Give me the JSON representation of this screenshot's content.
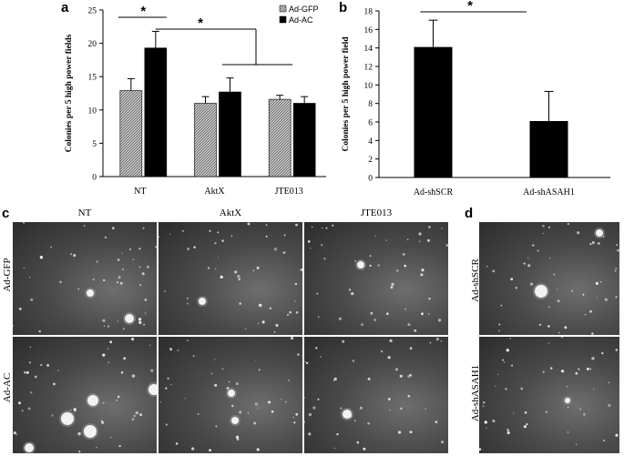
{
  "panels": {
    "a": "a",
    "b": "b",
    "c": "c",
    "d": "d"
  },
  "chart_data": [
    {
      "type": "bar",
      "panel": "a",
      "categories": [
        "NT",
        "AktX",
        "JTE013"
      ],
      "series": [
        {
          "name": "Ad-GFP",
          "values": [
            12.9,
            11.0,
            11.6
          ],
          "errors": [
            1.8,
            1.0,
            0.6
          ],
          "pattern": "hatched"
        },
        {
          "name": "Ad-AC",
          "values": [
            19.3,
            12.7,
            11.0
          ],
          "errors": [
            2.5,
            2.1,
            1.0
          ],
          "pattern": "solid"
        }
      ],
      "title": "",
      "xlabel": "",
      "ylabel": "Colonies per 5 high power fields",
      "ylim": [
        0,
        25
      ],
      "yticks": [
        0,
        5,
        10,
        15,
        20,
        25
      ],
      "legend": "top-right",
      "significance": [
        "*",
        "*"
      ]
    },
    {
      "type": "bar",
      "panel": "b",
      "categories": [
        "Ad-shSCR",
        "Ad-shASAH1"
      ],
      "values": [
        14.1,
        6.1
      ],
      "errors": [
        2.9,
        3.2
      ],
      "title": "",
      "xlabel": "",
      "ylabel": "Colonies per 5 high power field",
      "ylim": [
        0,
        18
      ],
      "yticks": [
        0,
        2,
        4,
        6,
        8,
        10,
        12,
        14,
        16,
        18
      ],
      "significance": [
        "*"
      ]
    }
  ],
  "micrographs": {
    "c": {
      "columns": [
        "NT",
        "AktX",
        "JTE013"
      ],
      "rows": [
        "Ad-GFP",
        "Ad-AC"
      ]
    },
    "d": {
      "rows": [
        "Ad-shSCR",
        "Ad-shASAH1"
      ]
    }
  }
}
